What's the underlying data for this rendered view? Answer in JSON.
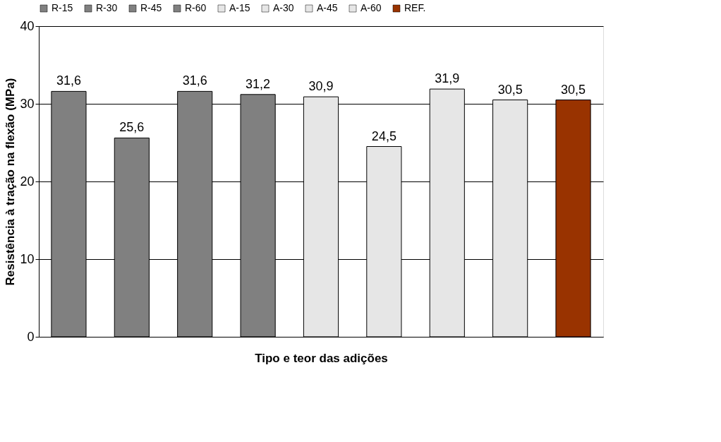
{
  "chart_data": {
    "type": "bar",
    "xlabel": "Tipo e teor das adições",
    "ylabel": "Resistência à tração na flexão (MPa)",
    "categories": [
      null
    ],
    "series": [
      {
        "name": "R-15",
        "color": "#808080",
        "values": [
          31.6
        ],
        "value_labels": [
          "31,6"
        ]
      },
      {
        "name": "R-30",
        "color": "#808080",
        "values": [
          25.6
        ],
        "value_labels": [
          "25,6"
        ]
      },
      {
        "name": "R-45",
        "color": "#808080",
        "values": [
          31.6
        ],
        "value_labels": [
          "31,6"
        ]
      },
      {
        "name": "R-60",
        "color": "#808080",
        "values": [
          31.2
        ],
        "value_labels": [
          "31,2"
        ]
      },
      {
        "name": "A-15",
        "color": "#e6e6e6",
        "values": [
          30.9
        ],
        "value_labels": [
          "30,9"
        ]
      },
      {
        "name": "A-30",
        "color": "#e6e6e6",
        "values": [
          24.5
        ],
        "value_labels": [
          "24,5"
        ]
      },
      {
        "name": "A-45",
        "color": "#e6e6e6",
        "values": [
          31.9
        ],
        "value_labels": [
          "31,9"
        ]
      },
      {
        "name": "A-60",
        "color": "#e6e6e6",
        "values": [
          30.5
        ],
        "value_labels": [
          "30,5"
        ]
      },
      {
        "name": "REF.",
        "color": "#993300",
        "values": [
          30.5
        ],
        "value_labels": [
          "30,5"
        ]
      }
    ],
    "ylim": [
      0,
      40
    ],
    "yticks": [
      0,
      10,
      20,
      30,
      40
    ],
    "grid": "y",
    "legend": "top"
  }
}
